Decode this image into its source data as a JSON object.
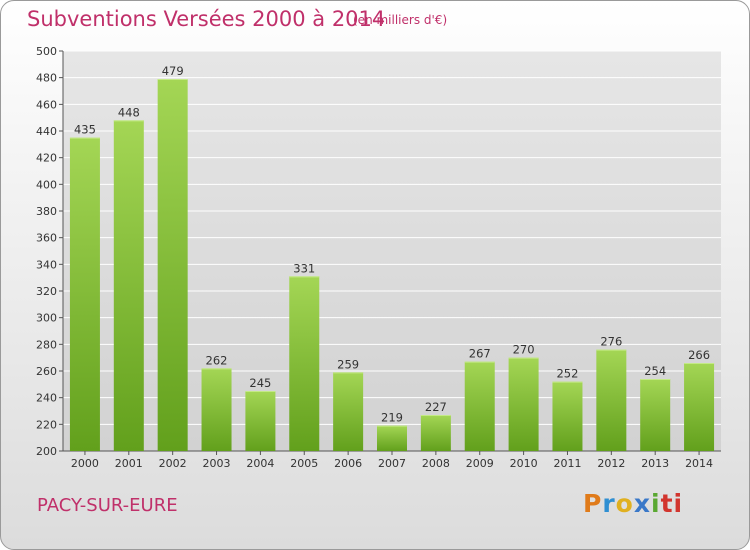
{
  "header": {
    "title": "Subventions Versées 2000 à 2014",
    "subtitle": "(en milliers d'€)"
  },
  "footer": {
    "commune": "PACY-SUR-EURE",
    "logo_letters": [
      "P",
      "r",
      "o",
      "x",
      "i",
      "ti"
    ]
  },
  "colors": {
    "bar_top": "#a4d655",
    "bar_bottom": "#62a01c",
    "title": "#c0306a",
    "grid": "#ffffff"
  },
  "chart_data": {
    "type": "bar",
    "categories": [
      "2000",
      "2001",
      "2002",
      "2003",
      "2004",
      "2005",
      "2006",
      "2007",
      "2008",
      "2009",
      "2010",
      "2011",
      "2012",
      "2013",
      "2014"
    ],
    "values": [
      435,
      448,
      479,
      262,
      245,
      331,
      259,
      219,
      227,
      267,
      270,
      252,
      276,
      254,
      266
    ],
    "ylim": [
      200,
      500
    ],
    "yticks": [
      200,
      220,
      240,
      260,
      280,
      300,
      320,
      340,
      360,
      380,
      400,
      420,
      440,
      460,
      480,
      500
    ],
    "grid": true,
    "data_labels": true
  }
}
